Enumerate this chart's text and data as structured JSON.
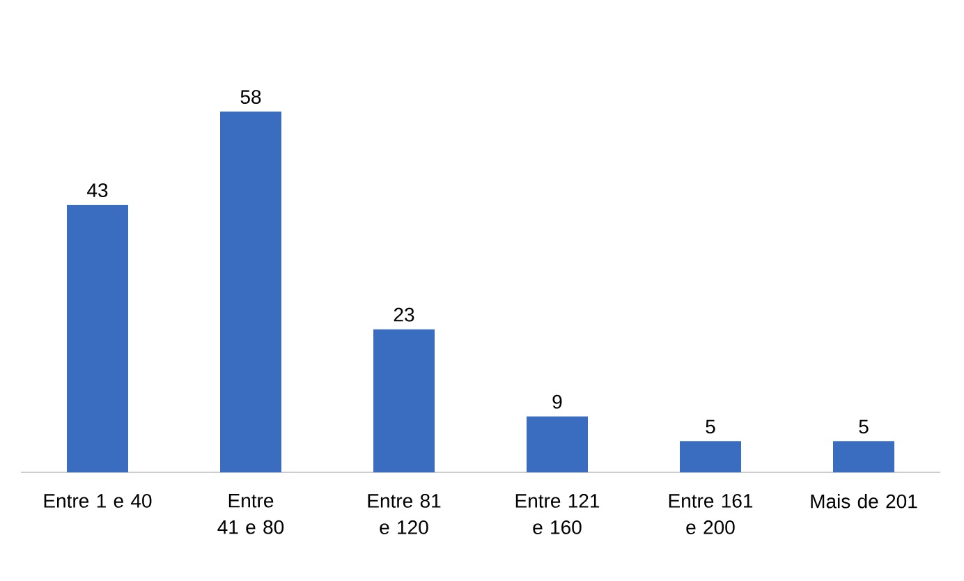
{
  "chart_data": {
    "type": "bar",
    "categories": [
      "Entre 1 e 40",
      "Entre 41 e 80",
      "Entre 81 e 120",
      "Entre 121 e 160",
      "Entre 161 e 200",
      "Mais de 201"
    ],
    "values": [
      43,
      58,
      23,
      9,
      5,
      5
    ],
    "color": "#3a6cc0",
    "data_labels": true
  }
}
